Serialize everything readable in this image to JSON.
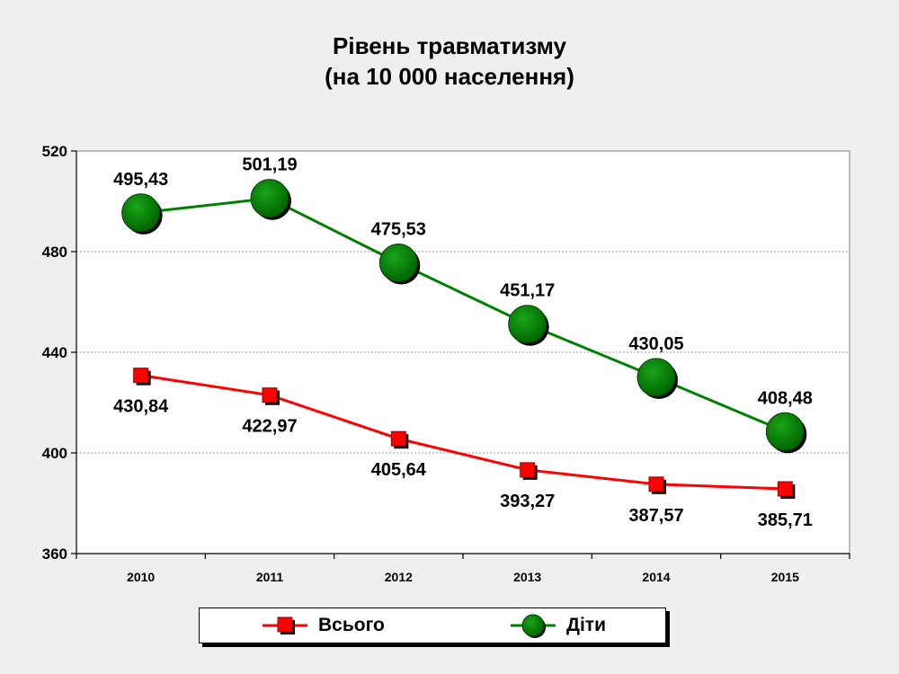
{
  "chart_data": {
    "type": "line",
    "title": "Рівень травматизму",
    "subtitle": "(на 10 000 населення)",
    "categories": [
      "2010",
      "2011",
      "2012",
      "2013",
      "2014",
      "2015"
    ],
    "ylim": [
      360,
      520
    ],
    "yticks": [
      "360",
      "400",
      "440",
      "480",
      "520"
    ],
    "grid": true,
    "legend_position": "bottom",
    "series": [
      {
        "name": "Всього",
        "color": "#ff0000",
        "marker": "square",
        "values": [
          430.84,
          422.97,
          405.64,
          393.27,
          387.57,
          385.71
        ],
        "labels": [
          "430,84",
          "422,97",
          "405,64",
          "393,27",
          "387,57",
          "385,71"
        ]
      },
      {
        "name": "Діти",
        "color": "#008000",
        "marker": "circle",
        "values": [
          495.43,
          501.19,
          475.53,
          451.17,
          430.05,
          408.48
        ],
        "labels": [
          "495,43",
          "501,19",
          "475,53",
          "451,17",
          "430,05",
          "408,48"
        ]
      }
    ]
  }
}
